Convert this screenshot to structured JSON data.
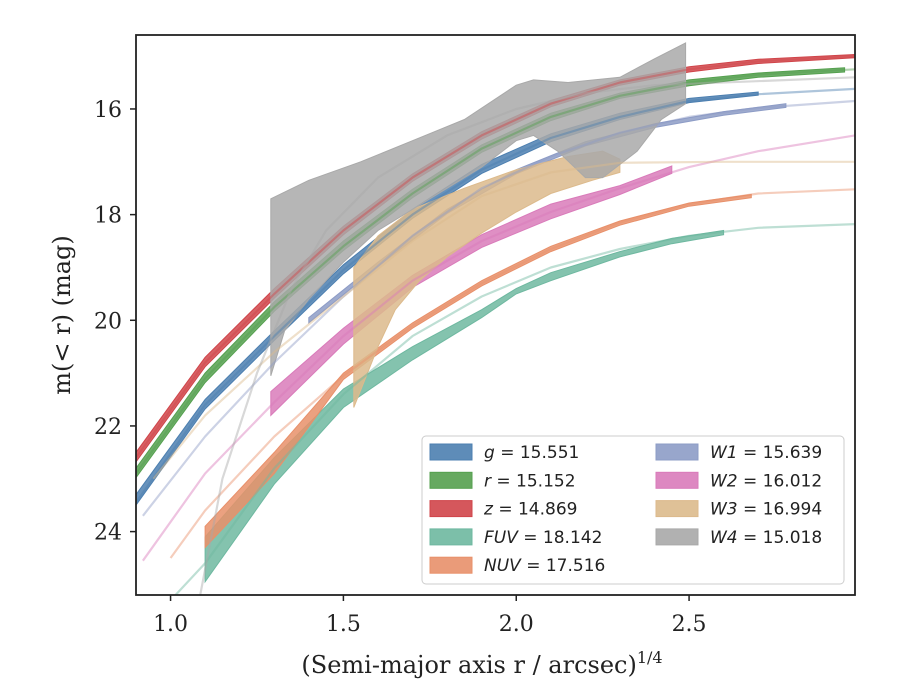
{
  "chart_data": {
    "type": "line",
    "xlabel": "(Semi-major axis r / arcsec)",
    "xlabel_exponent": "1/4",
    "ylabel": "m(< r) (mag)",
    "xlim": [
      0.9,
      2.98
    ],
    "ylim": [
      25.2,
      14.6
    ],
    "y_inverted": true,
    "grid": false,
    "legend_placement": "lower-right",
    "xticks": [
      {
        "value": 1.0,
        "label": "1.0"
      },
      {
        "value": 1.5,
        "label": "1.5"
      },
      {
        "value": 2.0,
        "label": "2.0"
      },
      {
        "value": 2.5,
        "label": "2.5"
      }
    ],
    "yticks": [
      {
        "value": 16,
        "label": "16"
      },
      {
        "value": 18,
        "label": "18"
      },
      {
        "value": 20,
        "label": "20"
      },
      {
        "value": 22,
        "label": "22"
      },
      {
        "value": 24,
        "label": "24"
      }
    ],
    "series": [
      {
        "name": "g = 15.551",
        "band": "g",
        "mag": "15.551",
        "color": "#4c7fb0",
        "model": [
          [
            0.9,
            23.45
          ],
          [
            1.1,
            21.6
          ],
          [
            1.3,
            20.3
          ],
          [
            1.5,
            19.05
          ],
          [
            1.7,
            18.0
          ],
          [
            1.9,
            17.15
          ],
          [
            2.1,
            16.55
          ],
          [
            2.3,
            16.15
          ],
          [
            2.5,
            15.85
          ],
          [
            2.7,
            15.72
          ],
          [
            2.98,
            15.62
          ]
        ],
        "band_upper": [
          [
            0.9,
            23.3
          ],
          [
            1.1,
            21.5
          ],
          [
            1.3,
            20.2
          ],
          [
            1.5,
            18.95
          ],
          [
            1.7,
            17.9
          ],
          [
            1.9,
            17.05
          ],
          [
            2.1,
            16.47
          ],
          [
            2.3,
            16.08
          ],
          [
            2.5,
            15.8
          ],
          [
            2.7,
            15.68
          ]
        ],
        "band_lower": [
          [
            2.7,
            15.74
          ],
          [
            2.5,
            15.88
          ],
          [
            2.3,
            16.2
          ],
          [
            2.1,
            16.62
          ],
          [
            1.9,
            17.22
          ],
          [
            1.7,
            18.07
          ],
          [
            1.5,
            19.12
          ],
          [
            1.3,
            20.38
          ],
          [
            1.1,
            21.68
          ],
          [
            0.9,
            23.5
          ]
        ]
      },
      {
        "name": "r = 15.152",
        "band": "r",
        "mag": "15.152",
        "color": "#55a04f",
        "model": [
          [
            0.9,
            22.9
          ],
          [
            1.1,
            21.1
          ],
          [
            1.3,
            19.75
          ],
          [
            1.5,
            18.6
          ],
          [
            1.7,
            17.6
          ],
          [
            1.9,
            16.75
          ],
          [
            2.1,
            16.15
          ],
          [
            2.3,
            15.75
          ],
          [
            2.5,
            15.5
          ],
          [
            2.7,
            15.35
          ],
          [
            2.98,
            15.25
          ]
        ],
        "band_upper": [
          [
            0.9,
            22.8
          ],
          [
            1.1,
            21.0
          ],
          [
            1.3,
            19.65
          ],
          [
            1.5,
            18.5
          ],
          [
            1.7,
            17.52
          ],
          [
            1.9,
            16.68
          ],
          [
            2.1,
            16.08
          ],
          [
            2.3,
            15.7
          ],
          [
            2.5,
            15.45
          ],
          [
            2.7,
            15.32
          ],
          [
            2.95,
            15.22
          ]
        ],
        "band_lower": [
          [
            2.95,
            15.3
          ],
          [
            2.7,
            15.4
          ],
          [
            2.5,
            15.56
          ],
          [
            2.3,
            15.8
          ],
          [
            2.1,
            16.22
          ],
          [
            1.9,
            16.82
          ],
          [
            1.7,
            17.68
          ],
          [
            1.5,
            18.68
          ],
          [
            1.3,
            19.83
          ],
          [
            1.1,
            21.18
          ],
          [
            0.9,
            22.98
          ]
        ]
      },
      {
        "name": "z = 14.869",
        "band": "z",
        "mag": "14.869",
        "color": "#d0454a",
        "model": [
          [
            0.9,
            22.6
          ],
          [
            1.1,
            20.8
          ],
          [
            1.3,
            19.5
          ],
          [
            1.5,
            18.3
          ],
          [
            1.7,
            17.3
          ],
          [
            1.9,
            16.5
          ],
          [
            2.1,
            15.9
          ],
          [
            2.3,
            15.5
          ],
          [
            2.5,
            15.25
          ],
          [
            2.7,
            15.1
          ],
          [
            2.98,
            15.0
          ]
        ],
        "band_upper": [
          [
            0.9,
            22.5
          ],
          [
            1.1,
            20.7
          ],
          [
            1.3,
            19.4
          ],
          [
            1.5,
            18.22
          ],
          [
            1.7,
            17.23
          ],
          [
            1.9,
            16.43
          ],
          [
            2.1,
            15.84
          ],
          [
            2.3,
            15.45
          ],
          [
            2.5,
            15.2
          ],
          [
            2.7,
            15.06
          ],
          [
            2.98,
            14.97
          ]
        ],
        "band_lower": [
          [
            2.98,
            15.03
          ],
          [
            2.7,
            15.14
          ],
          [
            2.5,
            15.3
          ],
          [
            2.3,
            15.55
          ],
          [
            2.1,
            15.96
          ],
          [
            1.9,
            16.57
          ],
          [
            1.7,
            17.37
          ],
          [
            1.5,
            18.38
          ],
          [
            1.3,
            19.58
          ],
          [
            1.1,
            20.88
          ],
          [
            0.9,
            22.68
          ]
        ]
      },
      {
        "name": "FUV = 18.142",
        "band": "FUV",
        "mag": "18.142",
        "color": "#6eb8a0",
        "model": [
          [
            1.0,
            25.3
          ],
          [
            1.1,
            24.6
          ],
          [
            1.3,
            22.8
          ],
          [
            1.5,
            21.4
          ],
          [
            1.7,
            20.3
          ],
          [
            1.9,
            19.55
          ],
          [
            2.1,
            19.0
          ],
          [
            2.3,
            18.65
          ],
          [
            2.5,
            18.4
          ],
          [
            2.7,
            18.25
          ],
          [
            2.98,
            18.18
          ]
        ],
        "band_upper": [
          [
            1.1,
            24.1
          ],
          [
            1.3,
            22.6
          ],
          [
            1.5,
            21.3
          ],
          [
            1.7,
            20.5
          ],
          [
            1.9,
            19.8
          ],
          [
            2.0,
            19.4
          ],
          [
            2.1,
            19.1
          ],
          [
            2.3,
            18.7
          ],
          [
            2.45,
            18.45
          ],
          [
            2.6,
            18.3
          ]
        ],
        "band_lower": [
          [
            2.6,
            18.38
          ],
          [
            2.45,
            18.55
          ],
          [
            2.3,
            18.8
          ],
          [
            2.1,
            19.25
          ],
          [
            2.0,
            19.5
          ],
          [
            1.9,
            19.95
          ],
          [
            1.7,
            20.75
          ],
          [
            1.5,
            21.65
          ],
          [
            1.3,
            23.1
          ],
          [
            1.1,
            24.95
          ]
        ]
      },
      {
        "name": "NUV = 17.516",
        "band": "NUV",
        "mag": "17.516",
        "color": "#e8906a",
        "model": [
          [
            1.0,
            24.5
          ],
          [
            1.1,
            23.6
          ],
          [
            1.3,
            22.2
          ],
          [
            1.5,
            21.05
          ],
          [
            1.7,
            20.1
          ],
          [
            1.9,
            19.3
          ],
          [
            2.1,
            18.65
          ],
          [
            2.3,
            18.15
          ],
          [
            2.5,
            17.8
          ],
          [
            2.7,
            17.6
          ],
          [
            2.98,
            17.52
          ]
        ],
        "band_upper": [
          [
            1.1,
            23.9
          ],
          [
            1.3,
            22.5
          ],
          [
            1.5,
            21.0
          ],
          [
            1.7,
            20.05
          ],
          [
            1.9,
            19.25
          ],
          [
            2.1,
            18.6
          ],
          [
            2.3,
            18.12
          ],
          [
            2.5,
            17.78
          ],
          [
            2.68,
            17.62
          ]
        ],
        "band_lower": [
          [
            2.68,
            17.68
          ],
          [
            2.5,
            17.84
          ],
          [
            2.3,
            18.2
          ],
          [
            2.1,
            18.7
          ],
          [
            1.9,
            19.35
          ],
          [
            1.7,
            20.15
          ],
          [
            1.5,
            21.12
          ],
          [
            1.3,
            22.9
          ],
          [
            1.1,
            24.3
          ]
        ]
      },
      {
        "name": "W1 = 15.639",
        "band": "W1",
        "mag": "15.639",
        "color": "#8d9cc6",
        "model": [
          [
            0.92,
            23.7
          ],
          [
            1.1,
            22.2
          ],
          [
            1.3,
            20.8
          ],
          [
            1.5,
            19.55
          ],
          [
            1.7,
            18.4
          ],
          [
            1.9,
            17.5
          ],
          [
            2.1,
            16.9
          ],
          [
            2.3,
            16.45
          ],
          [
            2.5,
            16.15
          ],
          [
            2.7,
            15.98
          ],
          [
            2.98,
            15.85
          ]
        ],
        "band_upper": [
          [
            1.4,
            19.95
          ],
          [
            1.6,
            18.9
          ],
          [
            1.8,
            17.9
          ],
          [
            2.0,
            17.15
          ],
          [
            2.2,
            16.62
          ],
          [
            2.4,
            16.28
          ],
          [
            2.6,
            16.05
          ],
          [
            2.78,
            15.9
          ]
        ],
        "band_lower": [
          [
            2.78,
            15.97
          ],
          [
            2.6,
            16.12
          ],
          [
            2.4,
            16.35
          ],
          [
            2.2,
            16.7
          ],
          [
            2.0,
            17.23
          ],
          [
            1.8,
            17.98
          ],
          [
            1.6,
            18.98
          ],
          [
            1.4,
            20.05
          ]
        ]
      },
      {
        "name": "W2 = 16.012",
        "band": "W2",
        "mag": "16.012",
        "color": "#d97bba",
        "model": [
          [
            0.92,
            24.55
          ],
          [
            1.1,
            22.9
          ],
          [
            1.3,
            21.55
          ],
          [
            1.5,
            20.3
          ],
          [
            1.7,
            19.25
          ],
          [
            1.9,
            18.5
          ],
          [
            2.1,
            17.95
          ],
          [
            2.3,
            17.5
          ],
          [
            2.5,
            17.1
          ],
          [
            2.7,
            16.8
          ],
          [
            2.98,
            16.5
          ]
        ],
        "band_upper": [
          [
            1.29,
            21.35
          ],
          [
            1.5,
            20.15
          ],
          [
            1.7,
            19.15
          ],
          [
            1.9,
            18.38
          ],
          [
            2.1,
            17.8
          ],
          [
            2.3,
            17.45
          ],
          [
            2.45,
            17.08
          ]
        ],
        "band_lower": [
          [
            2.45,
            17.22
          ],
          [
            2.3,
            17.62
          ],
          [
            2.1,
            18.08
          ],
          [
            1.9,
            18.62
          ],
          [
            1.7,
            19.38
          ],
          [
            1.5,
            20.45
          ],
          [
            1.29,
            21.8
          ]
        ]
      },
      {
        "name": "W3 = 16.994",
        "band": "W3",
        "mag": "16.994",
        "color": "#dcba8c",
        "model": [
          [
            0.95,
            23.0
          ],
          [
            1.1,
            21.8
          ],
          [
            1.3,
            20.6
          ],
          [
            1.5,
            19.55
          ],
          [
            1.7,
            18.5
          ],
          [
            1.9,
            17.65
          ],
          [
            2.1,
            17.2
          ],
          [
            2.3,
            17.02
          ],
          [
            2.6,
            17.0
          ],
          [
            2.98,
            17.0
          ]
        ],
        "band_upper": [
          [
            1.53,
            19.0
          ],
          [
            1.6,
            18.4
          ],
          [
            1.7,
            17.9
          ],
          [
            1.85,
            17.5
          ],
          [
            2.0,
            17.15
          ],
          [
            2.15,
            16.9
          ],
          [
            2.25,
            16.8
          ],
          [
            2.3,
            16.95
          ]
        ],
        "band_lower": [
          [
            2.3,
            17.2
          ],
          [
            2.22,
            17.35
          ],
          [
            2.1,
            17.6
          ],
          [
            2.0,
            17.95
          ],
          [
            1.9,
            18.35
          ],
          [
            1.8,
            18.8
          ],
          [
            1.72,
            19.25
          ],
          [
            1.65,
            19.8
          ],
          [
            1.6,
            20.5
          ],
          [
            1.53,
            21.65
          ]
        ]
      },
      {
        "name": "W4 = 15.018",
        "band": "W4",
        "mag": "15.018",
        "color": "#a9a9a9",
        "model": [
          [
            1.08,
            25.4
          ],
          [
            1.15,
            23.0
          ],
          [
            1.25,
            21.0
          ],
          [
            1.35,
            19.4
          ],
          [
            1.45,
            18.3
          ],
          [
            1.6,
            17.3
          ],
          [
            1.8,
            16.5
          ],
          [
            2.0,
            16.0
          ],
          [
            2.2,
            15.7
          ],
          [
            2.4,
            15.55
          ],
          [
            2.98,
            15.4
          ]
        ],
        "band_upper": [
          [
            1.29,
            17.7
          ],
          [
            1.4,
            17.35
          ],
          [
            1.55,
            17.0
          ],
          [
            1.7,
            16.6
          ],
          [
            1.85,
            16.2
          ],
          [
            2.0,
            15.55
          ],
          [
            2.05,
            15.45
          ],
          [
            2.15,
            15.5
          ],
          [
            2.3,
            15.4
          ],
          [
            2.4,
            15.05
          ],
          [
            2.49,
            14.75
          ]
        ],
        "band_lower": [
          [
            2.49,
            15.9
          ],
          [
            2.42,
            16.2
          ],
          [
            2.35,
            16.8
          ],
          [
            2.25,
            17.3
          ],
          [
            2.2,
            17.3
          ],
          [
            2.12,
            16.8
          ],
          [
            2.05,
            16.5
          ],
          [
            2.0,
            16.6
          ],
          [
            1.9,
            17.1
          ],
          [
            1.75,
            17.7
          ],
          [
            1.6,
            18.3
          ],
          [
            1.5,
            18.9
          ],
          [
            1.4,
            19.6
          ],
          [
            1.33,
            20.2
          ],
          [
            1.29,
            21.05
          ]
        ]
      }
    ]
  }
}
